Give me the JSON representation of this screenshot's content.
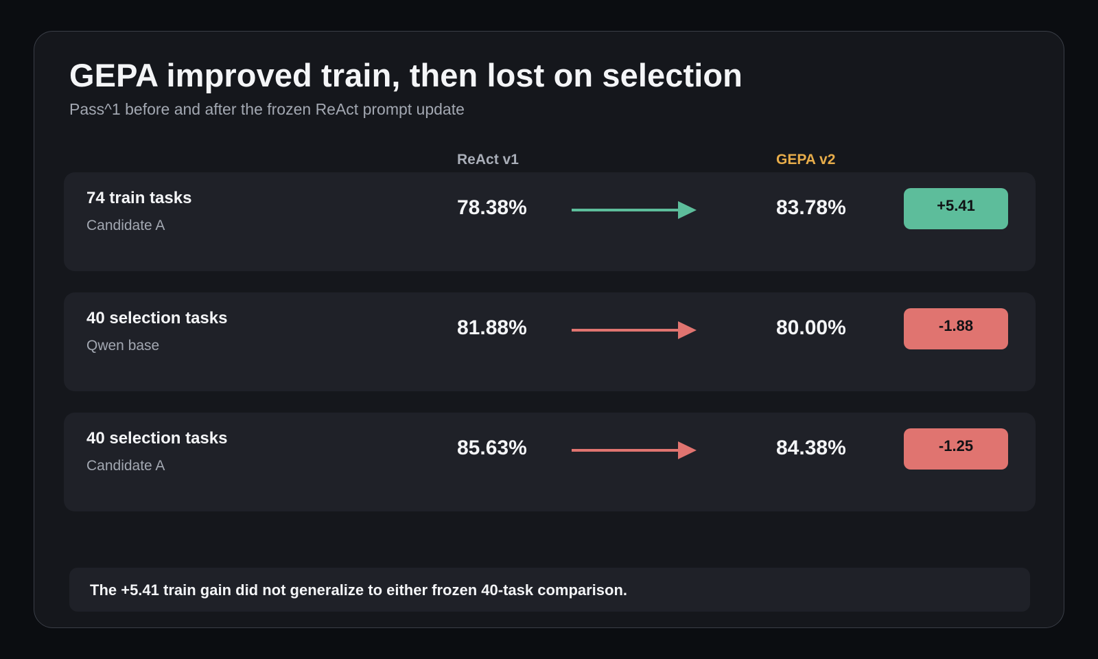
{
  "colors": {
    "positive": "#5dbd9b",
    "negative": "#e07470",
    "gepa_header": "#e8ad4a"
  },
  "chart_data": {
    "type": "table",
    "title": "GEPA improved train, then lost on selection",
    "subtitle": "Pass^1 before and after the frozen ReAct prompt update",
    "columns": [
      "ReAct v1",
      "GEPA v2"
    ],
    "rows": [
      {
        "label": "74 train tasks",
        "sublabel": "Candidate A",
        "before": "78.38%",
        "after": "83.78%",
        "delta": "+5.41",
        "direction": "up"
      },
      {
        "label": "40 selection tasks",
        "sublabel": "Qwen base",
        "before": "81.88%",
        "after": "80.00%",
        "delta": "-1.88",
        "direction": "down"
      },
      {
        "label": "40 selection tasks",
        "sublabel": "Candidate A",
        "before": "85.63%",
        "after": "84.38%",
        "delta": "-1.25",
        "direction": "down"
      }
    ],
    "note": "The +5.41 train gain did not generalize to either frozen 40-task comparison."
  }
}
